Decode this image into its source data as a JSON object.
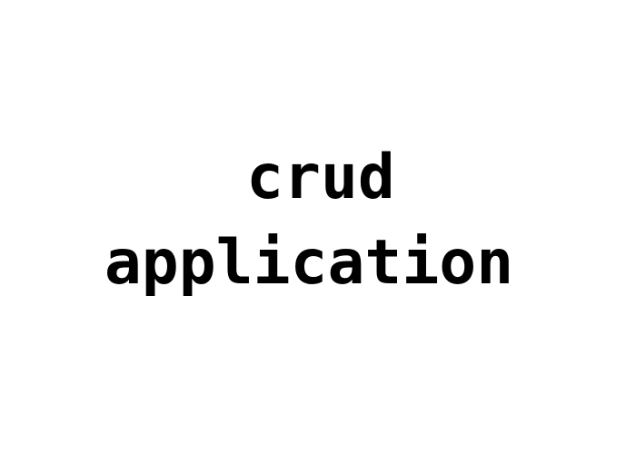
{
  "text": {
    "line1": "crud",
    "line2": "application"
  },
  "colors": {
    "background": "#ffffff",
    "text": "#000000"
  }
}
